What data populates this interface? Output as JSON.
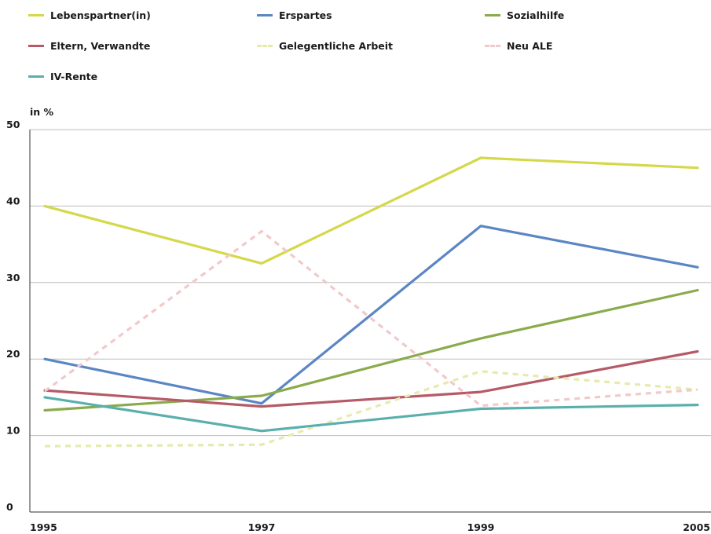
{
  "chart_data": {
    "type": "line",
    "ylabel": "in %",
    "x": [
      "1995",
      "1997",
      "1999",
      "2005"
    ],
    "ylim": [
      0,
      50
    ],
    "yticks": [
      "0",
      "10",
      "20",
      "30",
      "40",
      "50"
    ],
    "grid": true,
    "legend_position": "top",
    "series": [
      {
        "name": "Lebenspartner(in)",
        "color": "#d4d84a",
        "dashed": false,
        "values": [
          40,
          32.5,
          46.3,
          45
        ]
      },
      {
        "name": "Erspartes",
        "color": "#5b86c4",
        "dashed": false,
        "values": [
          20,
          14.2,
          37.4,
          32
        ]
      },
      {
        "name": "Sozialhilfe",
        "color": "#8aab4c",
        "dashed": false,
        "values": [
          13.3,
          15.2,
          22.7,
          29
        ]
      },
      {
        "name": "Eltern, Verwandte",
        "color": "#b55a66",
        "dashed": false,
        "values": [
          15.9,
          13.8,
          15.7,
          21
        ]
      },
      {
        "name": "Gelegentliche Arbeit",
        "color": "#e6ebac",
        "dashed": true,
        "values": [
          8.6,
          8.8,
          18.4,
          16
        ]
      },
      {
        "name": "Neu ALE",
        "color": "#f2c9cb",
        "dashed": true,
        "values": [
          15.8,
          36.7,
          13.9,
          16
        ]
      },
      {
        "name": "IV-Rente",
        "color": "#5aafad",
        "dashed": false,
        "values": [
          15,
          10.6,
          13.5,
          14
        ]
      }
    ]
  }
}
